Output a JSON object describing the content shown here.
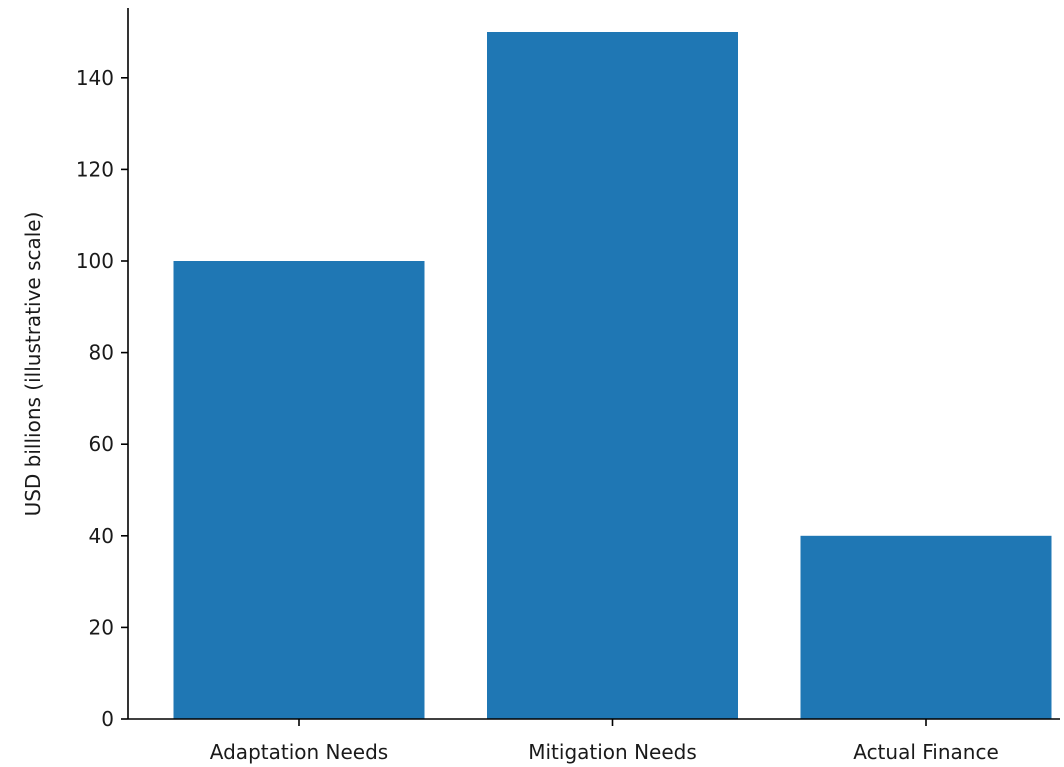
{
  "chart_data": {
    "type": "bar",
    "categories": [
      "Adaptation Needs",
      "Mitigation Needs",
      "Actual Finance"
    ],
    "values": [
      100,
      150,
      40
    ],
    "title": "",
    "xlabel": "",
    "ylabel": "USD billions (illustrative scale)",
    "ylim": [
      0,
      150
    ],
    "yticks": [
      0,
      20,
      40,
      60,
      80,
      100,
      120,
      140
    ],
    "bar_color": "#1f77b4",
    "grid": false,
    "legend": "none"
  }
}
